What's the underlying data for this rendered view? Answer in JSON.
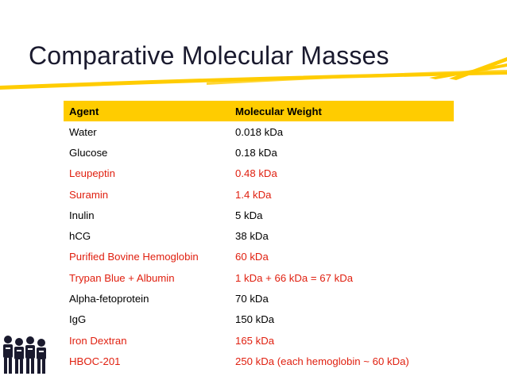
{
  "slide": {
    "title": "Comparative Molecular Masses",
    "accent_color": "#ffcc00",
    "highlight_color": "#e02010"
  },
  "table": {
    "headers": [
      "Agent",
      "Molecular Weight"
    ],
    "rows": [
      {
        "agent": "Water",
        "weight": "0.018 kDa",
        "highlight": false
      },
      {
        "agent": "Glucose",
        "weight": "0.18 kDa",
        "highlight": false
      },
      {
        "agent": "Leupeptin",
        "weight": "0.48 kDa",
        "highlight": true
      },
      {
        "agent": "Suramin",
        "weight": "1.4 kDa",
        "highlight": true
      },
      {
        "agent": "Inulin",
        "weight": "5 kDa",
        "highlight": false
      },
      {
        "agent": "hCG",
        "weight": "38 kDa",
        "highlight": false
      },
      {
        "agent": "Purified Bovine Hemoglobin",
        "weight": "60 kDa",
        "highlight": true
      },
      {
        "agent": "Trypan Blue + Albumin",
        "weight": "1 kDa + 66 kDa = 67 kDa",
        "highlight": true
      },
      {
        "agent": "Alpha-fetoprotein",
        "weight": "70 kDa",
        "highlight": false
      },
      {
        "agent": "IgG",
        "weight": "150 kDa",
        "highlight": false
      },
      {
        "agent": "Iron Dextran",
        "weight": "165 kDa",
        "highlight": true
      },
      {
        "agent": "HBOC-201",
        "weight": "250 kDa (each hemoglobin ~ 60 kDa)",
        "highlight": true
      }
    ]
  },
  "decor": {
    "logo_icon": "people-group-icon",
    "underline_icon": "brush-stroke-underline"
  }
}
